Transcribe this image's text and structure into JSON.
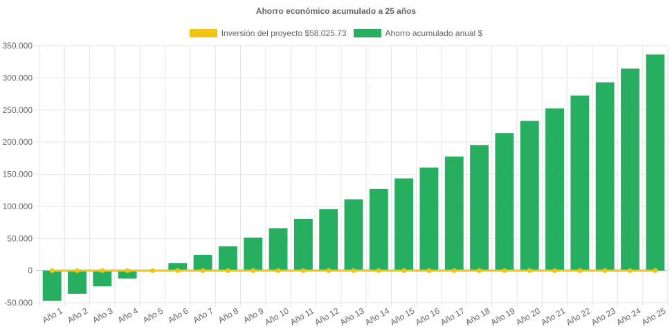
{
  "chart_data": {
    "type": "bar",
    "title": "Ahorro económico acumulado a 25 años",
    "categories": [
      "Año 1",
      "Año 2",
      "Año 3",
      "Año 4",
      "Año 5",
      "Año 6",
      "Año 7",
      "Año 8",
      "Año 9",
      "Año 10",
      "Año 11",
      "Año 12",
      "Año 13",
      "Año 14",
      "Año 15",
      "Año 16",
      "Año 17",
      "Año 18",
      "Año 19",
      "Año 20",
      "Año 21",
      "Año 22",
      "Año 23",
      "Año 24",
      "Año 25"
    ],
    "series": [
      {
        "name": "Inversión del proyecto $58,025.73",
        "kind": "line",
        "color": "#f1c40f",
        "values": [
          0,
          0,
          0,
          0,
          0,
          0,
          0,
          0,
          0,
          0,
          0,
          0,
          0,
          0,
          0,
          0,
          0,
          0,
          0,
          0,
          0,
          0,
          0,
          0,
          0
        ]
      },
      {
        "name": "Ahorro acumulado anual $",
        "kind": "bar",
        "color": "#27ae60",
        "values": [
          -47000,
          -36000,
          -24500,
          -12500,
          0,
          11500,
          24500,
          38000,
          51500,
          66000,
          80500,
          95500,
          111000,
          127000,
          143500,
          160500,
          177500,
          195500,
          214000,
          233000,
          252500,
          272500,
          293000,
          314500,
          336500
        ]
      }
    ],
    "yticks": [
      "350.000",
      "300.000",
      "250.000",
      "200.000",
      "150.000",
      "100.000",
      "50.000",
      "0",
      "-50.000"
    ],
    "ylim": [
      -50000,
      350000
    ],
    "grid": true,
    "legend_position": "top"
  }
}
